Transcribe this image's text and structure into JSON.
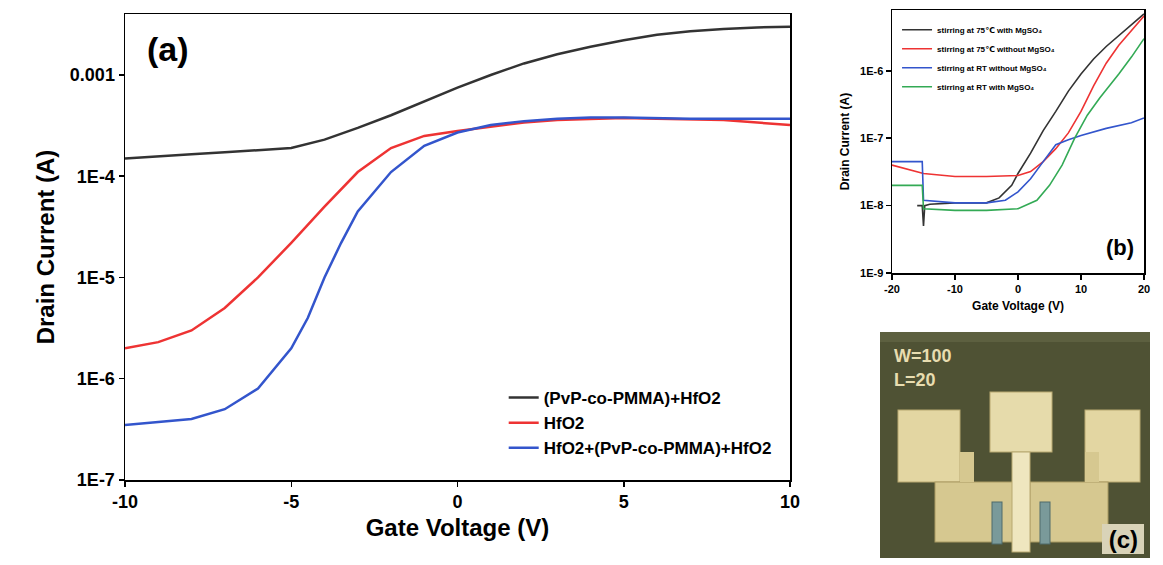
{
  "chart_data": [
    {
      "type": "line",
      "annotations": [
        "(a)"
      ],
      "x_label": "Gate Voltage (V)",
      "y_label": "Drain Current (A)",
      "log": "y",
      "xlim": [
        -10,
        10
      ],
      "xticks": [
        -10,
        -5,
        0,
        5,
        10
      ],
      "ylim": [
        1e-07,
        0.004
      ],
      "yticks": [
        {
          "value": 1e-07,
          "label": "1E-7"
        },
        {
          "value": 1e-06,
          "label": "1E-6"
        },
        {
          "value": 1e-05,
          "label": "1E-5"
        },
        {
          "value": 0.0001,
          "label": "1E-4"
        },
        0.001
      ],
      "legend": "lower right",
      "series": [
        {
          "name": "(PvP-co-PMMA)+HfO2",
          "color": "#333333",
          "x": [
            -10,
            -9,
            -8,
            -7,
            -6,
            -5,
            -4,
            -3,
            -2,
            -1,
            0,
            1,
            2,
            3,
            4,
            5,
            6,
            7,
            8,
            9,
            10
          ],
          "values": [
            0.00015,
            0.000158,
            0.000165,
            0.000172,
            0.00018,
            0.00019,
            0.00023,
            0.0003,
            0.0004,
            0.00055,
            0.00075,
            0.001,
            0.0013,
            0.0016,
            0.0019,
            0.0022,
            0.0025,
            0.0027,
            0.00285,
            0.00295,
            0.003
          ]
        },
        {
          "name": "HfO2",
          "color": "#ee3333",
          "x": [
            -10,
            -9,
            -8,
            -7,
            -6,
            -5,
            -4,
            -3,
            -2,
            -1,
            0,
            1,
            2,
            3,
            4,
            5,
            6,
            8,
            10
          ],
          "values": [
            2e-06,
            2.3e-06,
            3e-06,
            5e-06,
            1e-05,
            2.2e-05,
            5e-05,
            0.00011,
            0.00019,
            0.00025,
            0.00028,
            0.00031,
            0.00034,
            0.00036,
            0.00037,
            0.000375,
            0.00037,
            0.00036,
            0.00032
          ]
        },
        {
          "name": "HfO2+(PvP-co-PMMA)+HfO2",
          "color": "#3355cc",
          "x": [
            -10,
            -8,
            -7,
            -6,
            -5,
            -4.5,
            -4,
            -3.5,
            -3,
            -2,
            -1,
            0,
            1,
            2,
            3,
            4,
            5,
            7,
            10
          ],
          "values": [
            3.5e-07,
            4e-07,
            5e-07,
            8e-07,
            2e-06,
            4e-06,
            1e-05,
            2.2e-05,
            4.5e-05,
            0.00011,
            0.0002,
            0.00027,
            0.00032,
            0.00035,
            0.00037,
            0.00038,
            0.00038,
            0.00037,
            0.00037
          ]
        }
      ]
    },
    {
      "type": "line",
      "annotations": [
        "(b)"
      ],
      "x_label": "Gate Voltage (V)",
      "y_label": "Drain Current (A)",
      "log": "y",
      "xlim": [
        -20,
        20
      ],
      "xticks": [
        -20,
        -10,
        0,
        10,
        20
      ],
      "ylim": [
        1e-09,
        8e-06
      ],
      "yticks": [
        {
          "value": 1e-09,
          "label": "1E-9"
        },
        {
          "value": 1e-08,
          "label": "1E-8"
        },
        {
          "value": 1e-07,
          "label": "1E-7"
        },
        {
          "value": 1e-06,
          "label": "1E-6"
        }
      ],
      "legend": "upper left",
      "series": [
        {
          "name": "stirring at 75℃ with MgSO₄",
          "color": "#333333",
          "x": [
            -16,
            -15.2,
            -15,
            -14.8,
            -14,
            -10,
            -5,
            -3,
            -1,
            0,
            2,
            4,
            6,
            8,
            10,
            12,
            14,
            16,
            18,
            20
          ],
          "values": [
            1e-08,
            1e-08,
            5e-09,
            1e-08,
            1.05e-08,
            1.1e-08,
            1.1e-08,
            1.3e-08,
            2e-08,
            3e-08,
            6e-08,
            1.3e-07,
            2.5e-07,
            5e-07,
            9e-07,
            1.5e-06,
            2.3e-06,
            3.3e-06,
            4.8e-06,
            7e-06
          ]
        },
        {
          "name": "stirring at 75℃ without MgSO₄",
          "color": "#ee3333",
          "x": [
            -20,
            -15,
            -10,
            -5,
            0,
            2,
            4,
            6,
            8,
            10,
            12,
            14,
            16,
            18,
            20
          ],
          "values": [
            4e-08,
            3e-08,
            2.7e-08,
            2.7e-08,
            2.8e-08,
            3.2e-08,
            4.5e-08,
            7e-08,
            1.2e-07,
            2.5e-07,
            6e-07,
            1.3e-06,
            2.4e-06,
            4e-06,
            6.5e-06
          ]
        },
        {
          "name": "stirring at RT without MgSO₄",
          "color": "#3355cc",
          "x": [
            -20,
            -15.2,
            -15,
            -10,
            -5,
            -2,
            0,
            2,
            4,
            6,
            8,
            10,
            14,
            18,
            20
          ],
          "values": [
            4.5e-08,
            4.5e-08,
            1.2e-08,
            1.1e-08,
            1.1e-08,
            1.2e-08,
            1.6e-08,
            2.5e-08,
            4.5e-08,
            8e-08,
            9.5e-08,
            1.1e-07,
            1.4e-07,
            1.7e-07,
            2e-07
          ]
        },
        {
          "name": "stirring at RT with MgSO₄",
          "color": "#33aa55",
          "x": [
            -20,
            -15.2,
            -15,
            -10,
            -5,
            0,
            3,
            5,
            7,
            9,
            11,
            13,
            16,
            18,
            20
          ],
          "values": [
            2e-08,
            2e-08,
            9e-09,
            8.5e-09,
            8.5e-09,
            9e-09,
            1.2e-08,
            2e-08,
            4e-08,
            1e-07,
            2.2e-07,
            4e-07,
            9e-07,
            1.6e-06,
            3e-06
          ]
        }
      ]
    }
  ],
  "photo": {
    "label": "(c)",
    "texts": [
      "W=100",
      "L=20"
    ]
  }
}
